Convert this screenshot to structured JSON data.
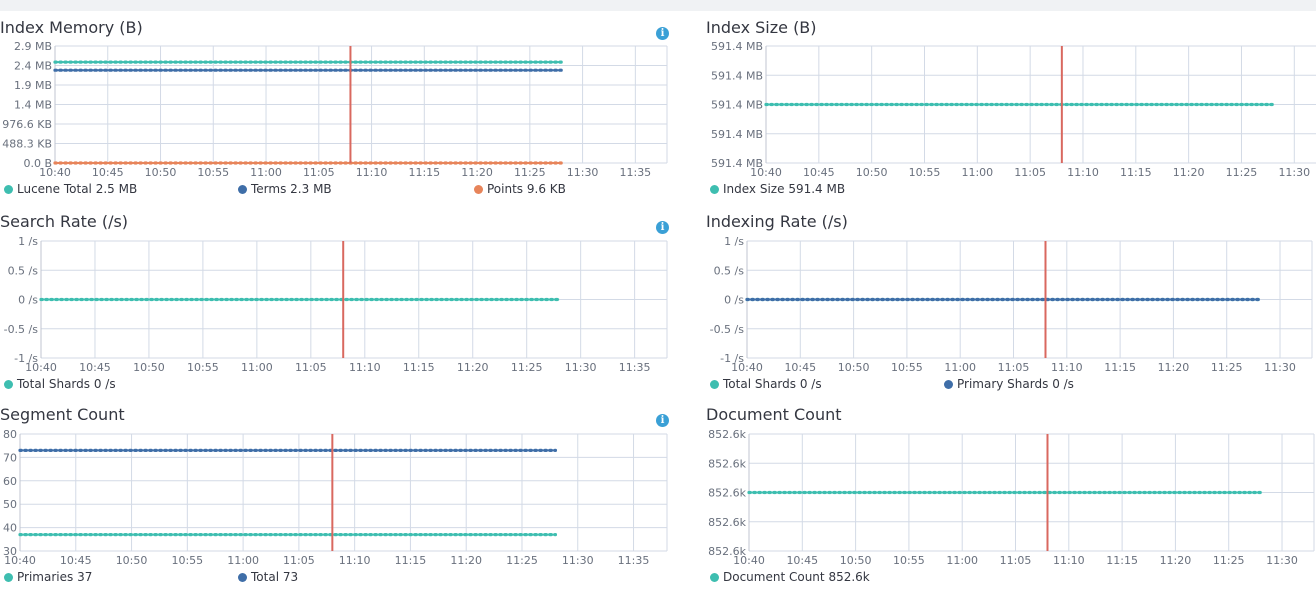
{
  "colors": {
    "teal": "#3ebeb0",
    "blue": "#3f6ea8",
    "orange": "#e7845a",
    "marker": "#d9685f",
    "grid": "#d3dae6"
  },
  "time_ticks": [
    "10:40",
    "10:45",
    "10:50",
    "10:55",
    "11:00",
    "11:05",
    "11:10",
    "11:15",
    "11:20",
    "11:25",
    "11:30",
    "11:35"
  ],
  "panels": [
    {
      "id": "index-memory",
      "title": "Index Memory (B)",
      "info": true,
      "chart_data": {
        "type": "line",
        "x_ticks": [
          "10:40",
          "10:45",
          "10:50",
          "10:55",
          "11:00",
          "11:05",
          "11:10",
          "11:15",
          "11:20",
          "11:25",
          "11:30",
          "11:35"
        ],
        "y_ticks": [
          "2.9 MB",
          "2.4 MB",
          "1.9 MB",
          "1.4 MB",
          "976.6 KB",
          "488.3 KB",
          "0.0 B"
        ],
        "ylim": [
          0,
          2.9
        ],
        "x_range": [
          "10:40",
          "11:38"
        ],
        "data_until": "11:28",
        "marker_at": "11:08",
        "series": [
          {
            "name": "Lucene Total",
            "value_label": "2.5 MB",
            "y": 2.5,
            "color": "#3ebeb0"
          },
          {
            "name": "Terms",
            "value_label": "2.3 MB",
            "y": 2.3,
            "color": "#3f6ea8"
          },
          {
            "name": "Points",
            "value_label": "9.6 KB",
            "y": 0.0,
            "color": "#e7845a"
          }
        ]
      }
    },
    {
      "id": "index-size",
      "title": "Index Size (B)",
      "info": false,
      "chart_data": {
        "type": "line",
        "x_ticks": [
          "10:40",
          "10:45",
          "10:50",
          "10:55",
          "11:00",
          "11:05",
          "11:10",
          "11:15",
          "11:20",
          "11:25",
          "11:30"
        ],
        "y_ticks": [
          "591.4 MB",
          "591.4 MB",
          "591.4 MB",
          "591.4 MB",
          "591.4 MB"
        ],
        "ylim": [
          0,
          4
        ],
        "x_range": [
          "10:40",
          "11:33"
        ],
        "data_until": "11:28",
        "marker_at": "11:08",
        "series": [
          {
            "name": "Index Size",
            "value_label": "591.4 MB",
            "y": 2,
            "color": "#3ebeb0"
          }
        ]
      }
    },
    {
      "id": "search-rate",
      "title": "Search Rate (/s)",
      "info": true,
      "chart_data": {
        "type": "line",
        "x_ticks": [
          "10:40",
          "10:45",
          "10:50",
          "10:55",
          "11:00",
          "11:05",
          "11:10",
          "11:15",
          "11:20",
          "11:25",
          "11:30",
          "11:35"
        ],
        "y_ticks": [
          "1 /s",
          "0.5 /s",
          "0 /s",
          "-0.5 /s",
          "-1 /s"
        ],
        "ylim": [
          -1,
          1
        ],
        "x_range": [
          "10:40",
          "11:38"
        ],
        "data_until": "11:28",
        "marker_at": "11:08",
        "series": [
          {
            "name": "Total Shards",
            "value_label": "0 /s",
            "y": 0,
            "color": "#3ebeb0"
          }
        ]
      }
    },
    {
      "id": "indexing-rate",
      "title": "Indexing Rate (/s)",
      "info": false,
      "chart_data": {
        "type": "line",
        "x_ticks": [
          "10:40",
          "10:45",
          "10:50",
          "10:55",
          "11:00",
          "11:05",
          "11:10",
          "11:15",
          "11:20",
          "11:25",
          "11:30"
        ],
        "y_ticks": [
          "1 /s",
          "0.5 /s",
          "0 /s",
          "-0.5 /s",
          "-1 /s"
        ],
        "ylim": [
          -1,
          1
        ],
        "x_range": [
          "10:40",
          "11:33"
        ],
        "data_until": "11:28",
        "marker_at": "11:08",
        "series": [
          {
            "name": "Total Shards",
            "value_label": "0 /s",
            "y": 0,
            "color": "#3ebeb0"
          },
          {
            "name": "Primary Shards",
            "value_label": "0 /s",
            "y": 0,
            "color": "#3f6ea8"
          }
        ]
      }
    },
    {
      "id": "segment-count",
      "title": "Segment Count",
      "info": true,
      "chart_data": {
        "type": "line",
        "x_ticks": [
          "10:40",
          "10:45",
          "10:50",
          "10:55",
          "11:00",
          "11:05",
          "11:10",
          "11:15",
          "11:20",
          "11:25",
          "11:30",
          "11:35"
        ],
        "y_ticks": [
          "80",
          "70",
          "60",
          "50",
          "40",
          "30"
        ],
        "ylim": [
          30,
          80
        ],
        "x_range": [
          "10:40",
          "11:38"
        ],
        "data_until": "11:28",
        "marker_at": "11:08",
        "series": [
          {
            "name": "Primaries",
            "value_label": "37",
            "y": 37,
            "color": "#3ebeb0"
          },
          {
            "name": "Total",
            "value_label": "73",
            "y": 73,
            "color": "#3f6ea8"
          }
        ]
      }
    },
    {
      "id": "document-count",
      "title": "Document Count",
      "info": false,
      "chart_data": {
        "type": "line",
        "x_ticks": [
          "10:40",
          "10:45",
          "10:50",
          "10:55",
          "11:00",
          "11:05",
          "11:10",
          "11:15",
          "11:20",
          "11:25",
          "11:30"
        ],
        "y_ticks": [
          "852.6k",
          "852.6k",
          "852.6k",
          "852.6k",
          "852.6k"
        ],
        "ylim": [
          0,
          4
        ],
        "x_range": [
          "10:40",
          "11:33"
        ],
        "data_until": "11:28",
        "marker_at": "11:08",
        "series": [
          {
            "name": "Document Count",
            "value_label": "852.6k",
            "y": 2,
            "color": "#3ebeb0"
          }
        ]
      }
    }
  ]
}
